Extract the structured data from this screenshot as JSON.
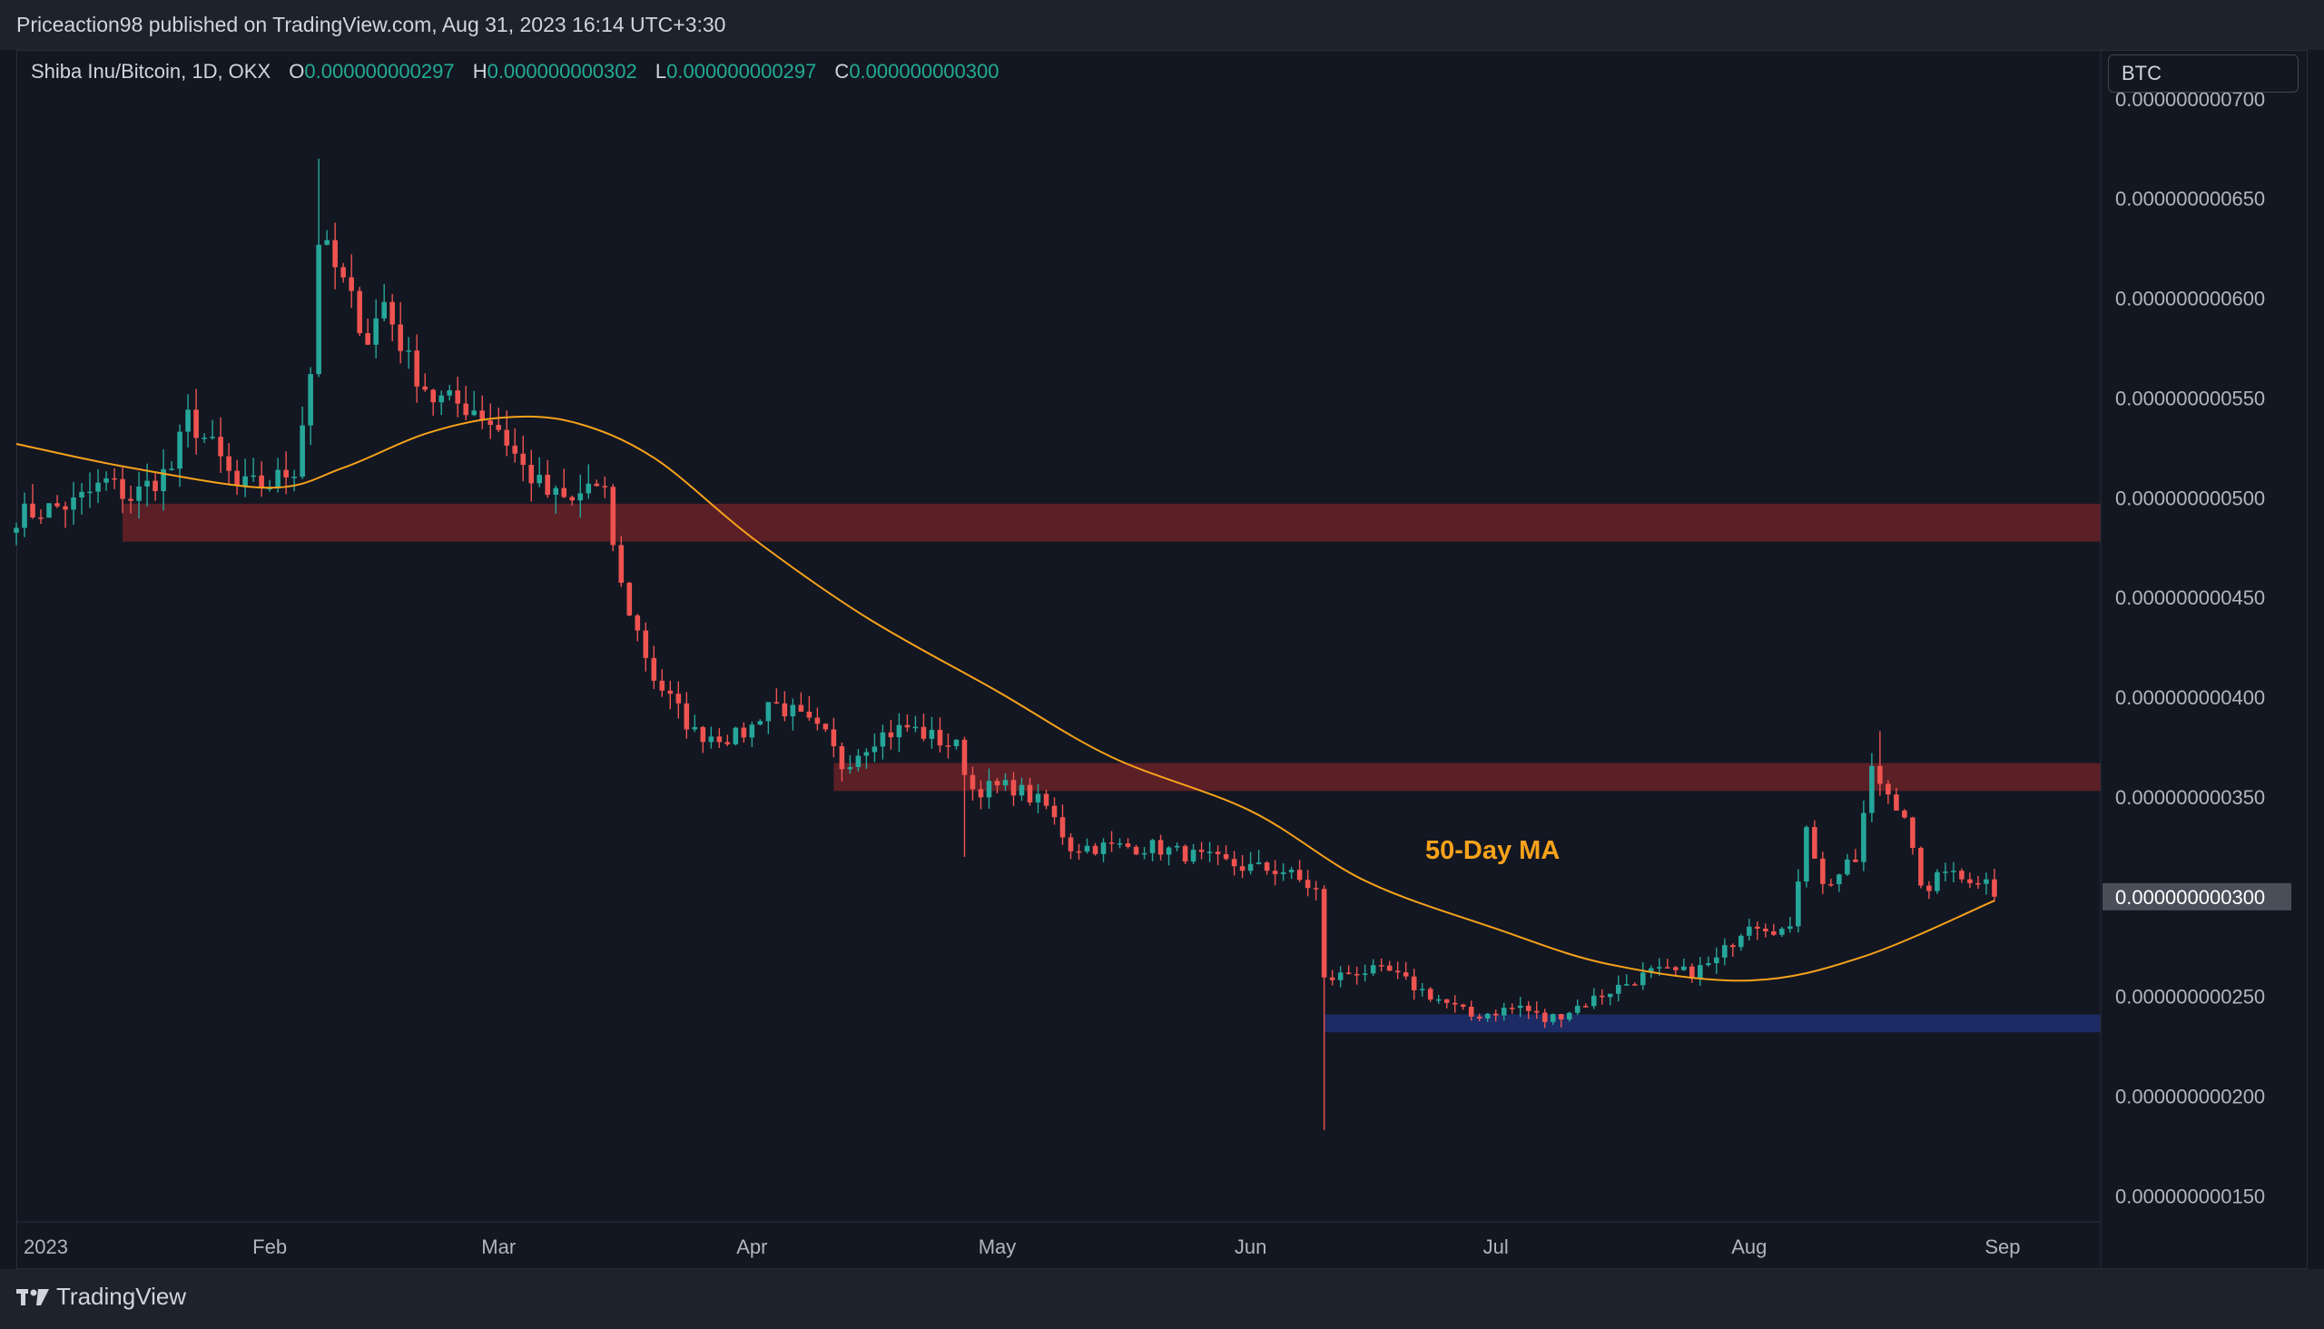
{
  "header": {
    "published_text": "Priceaction98 published on TradingView.com, Aug 31, 2023 16:14 UTC+3:30"
  },
  "legend": {
    "symbol": "Shiba Inu/Bitcoin, 1D, OKX",
    "o_label": "O",
    "o_value": "0.000000000297",
    "h_label": "H",
    "h_value": "0.000000000302",
    "l_label": "L",
    "l_value": "0.000000000297",
    "c_label": "C",
    "c_value": "0.000000000300"
  },
  "currency_label": "BTC",
  "footer": {
    "brand": "TradingView",
    "logo_icon": "tradingview-logo-icon"
  },
  "colors": {
    "background": "#131722",
    "up": "#26a69a",
    "down": "#ef5350",
    "ma": "#f7a21b",
    "resistance_zone": "#5b1f26",
    "support_zone": "#1c2b63",
    "last_price_tag": "#4a4e59"
  },
  "chart_data": {
    "type": "candlestick",
    "symbol": "Shiba Inu/Bitcoin",
    "interval": "1D",
    "y_axis": {
      "ticks": [
        "0.000000000700",
        "0.000000000650",
        "0.000000000600",
        "0.000000000550",
        "0.000000000500",
        "0.000000000450",
        "0.000000000400",
        "0.000000000350",
        "0.000000000300",
        "0.000000000250",
        "0.000000000200",
        "0.000000000150"
      ],
      "ylim": [
        1.42e-10,
        7.04e-10
      ],
      "last_price": "0.000000000300"
    },
    "x_axis": {
      "ticks": [
        "2023",
        "Feb",
        "Mar",
        "Apr",
        "May",
        "Jun",
        "Jul",
        "Aug",
        "Sep"
      ],
      "tick_dates": [
        "2023-01-01",
        "2023-02-01",
        "2023-03-01",
        "2023-04-01",
        "2023-05-01",
        "2023-06-01",
        "2023-07-01",
        "2023-08-01",
        "2023-09-01"
      ],
      "xlim": [
        "2023-01-01",
        "2023-09-13"
      ]
    },
    "ohlc_keyframes": [
      [
        "2023-01-01",
        491
      ],
      [
        "2023-01-08",
        497
      ],
      [
        "2023-01-12",
        508
      ],
      [
        "2023-01-15",
        500
      ],
      [
        "2023-01-20",
        515
      ],
      [
        "2023-01-22",
        540
      ],
      [
        "2023-01-25",
        525
      ],
      [
        "2023-01-28",
        505
      ],
      [
        "2023-02-01",
        507
      ],
      [
        "2023-02-04",
        515
      ],
      [
        "2023-02-06",
        563
      ],
      [
        "2023-02-07",
        630
      ],
      [
        "2023-02-10",
        607
      ],
      [
        "2023-02-13",
        580
      ],
      [
        "2023-02-15",
        598
      ],
      [
        "2023-02-18",
        568
      ],
      [
        "2023-02-21",
        550
      ],
      [
        "2023-02-26",
        545
      ],
      [
        "2023-03-01",
        535
      ],
      [
        "2023-03-04",
        515
      ],
      [
        "2023-03-07",
        502
      ],
      [
        "2023-03-10",
        497
      ],
      [
        "2023-03-12",
        507
      ],
      [
        "2023-03-14",
        500
      ],
      [
        "2023-03-16",
        455
      ],
      [
        "2023-03-20",
        410
      ],
      [
        "2023-03-25",
        382
      ],
      [
        "2023-03-30",
        380
      ],
      [
        "2023-04-01",
        385
      ],
      [
        "2023-04-03",
        398
      ],
      [
        "2023-04-06",
        392
      ],
      [
        "2023-04-10",
        380
      ],
      [
        "2023-04-12",
        366
      ],
      [
        "2023-04-16",
        380
      ],
      [
        "2023-04-20",
        385
      ],
      [
        "2023-04-26",
        375
      ],
      [
        "2023-04-28",
        354
      ],
      [
        "2023-05-03",
        355
      ],
      [
        "2023-05-07",
        345
      ],
      [
        "2023-05-10",
        325
      ],
      [
        "2023-05-20",
        325
      ],
      [
        "2023-05-31",
        315
      ],
      [
        "2023-06-05",
        313
      ],
      [
        "2023-06-09",
        303
      ],
      [
        "2023-06-10",
        258
      ],
      [
        "2023-06-14",
        263
      ],
      [
        "2023-06-18",
        262
      ],
      [
        "2023-06-21",
        255
      ],
      [
        "2023-06-28",
        240
      ],
      [
        "2023-07-04",
        245
      ],
      [
        "2023-07-07",
        238
      ],
      [
        "2023-07-10",
        243
      ],
      [
        "2023-07-15",
        253
      ],
      [
        "2023-07-20",
        262
      ],
      [
        "2023-07-25",
        262
      ],
      [
        "2023-07-28",
        268
      ],
      [
        "2023-08-01",
        288
      ],
      [
        "2023-08-06",
        282
      ],
      [
        "2023-08-08",
        338
      ],
      [
        "2023-08-10",
        305
      ],
      [
        "2023-08-14",
        318
      ],
      [
        "2023-08-16",
        363
      ],
      [
        "2023-08-18",
        352
      ],
      [
        "2023-08-20",
        342
      ],
      [
        "2023-08-22",
        302
      ],
      [
        "2023-08-26",
        316
      ],
      [
        "2023-08-28",
        306
      ],
      [
        "2023-08-30",
        312
      ],
      [
        "2023-08-31",
        300
      ]
    ],
    "ohlc_units": "1e-12 BTC (close, interpolated daily)",
    "special_wicks": [
      {
        "date": "2023-02-07",
        "high": 670
      },
      {
        "date": "2023-04-27",
        "low": 320
      },
      {
        "date": "2023-06-10",
        "low": 183
      },
      {
        "date": "2023-08-17",
        "high": 383
      }
    ],
    "moving_average": {
      "label": "50-Day MA",
      "points": [
        [
          "2023-01-01",
          527
        ],
        [
          "2023-01-15",
          515
        ],
        [
          "2023-02-01",
          505
        ],
        [
          "2023-02-10",
          515
        ],
        [
          "2023-02-20",
          532
        ],
        [
          "2023-03-01",
          540
        ],
        [
          "2023-03-10",
          538
        ],
        [
          "2023-03-20",
          520
        ],
        [
          "2023-04-01",
          480
        ],
        [
          "2023-04-15",
          440
        ],
        [
          "2023-05-01",
          403
        ],
        [
          "2023-05-15",
          370
        ],
        [
          "2023-06-01",
          343
        ],
        [
          "2023-06-15",
          308
        ],
        [
          "2023-07-01",
          284
        ],
        [
          "2023-07-15",
          266
        ],
        [
          "2023-08-01",
          258
        ],
        [
          "2023-08-15",
          270
        ],
        [
          "2023-08-31",
          298
        ]
      ]
    },
    "zones": [
      {
        "name": "resistance-zone-upper",
        "from": "2023-01-14",
        "y_top": 497,
        "y_bottom": 478,
        "color": "#5b1f26"
      },
      {
        "name": "resistance-zone-lower",
        "from": "2023-04-11",
        "y_top": 367,
        "y_bottom": 353,
        "color": "#5b1f26"
      },
      {
        "name": "support-zone",
        "from": "2023-06-10",
        "y_top": 241,
        "y_bottom": 232,
        "color": "#1c2b63"
      }
    ]
  }
}
